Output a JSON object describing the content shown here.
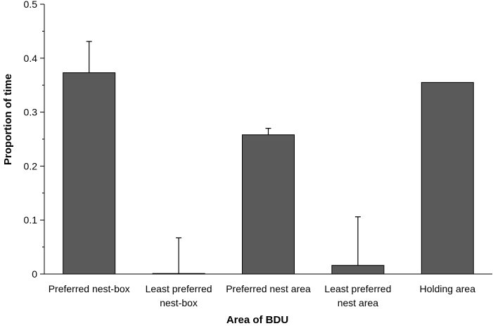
{
  "chart_data": {
    "type": "bar",
    "title": "",
    "xlabel": "Area of BDU",
    "ylabel": "Proportion of time",
    "categories": [
      [
        "Preferred nest-box"
      ],
      [
        "Least preferred",
        "nest-box"
      ],
      [
        "Preferred nest area"
      ],
      [
        "Least preferred",
        "nest area"
      ],
      [
        "Holding area"
      ]
    ],
    "values": [
      0.373,
      0.001,
      0.258,
      0.016,
      0.355
    ],
    "error_upper": [
      0.431,
      0.067,
      0.27,
      0.106,
      null
    ],
    "ylim": [
      0,
      0.5
    ],
    "yticks": [
      0,
      0.1,
      0.2,
      0.3,
      0.4,
      0.5
    ],
    "ytick_labels": [
      "0",
      "0.1",
      "0.2",
      "0.3",
      "0.4",
      "0.5"
    ],
    "grid": false,
    "bar_color": "#5a5a5a"
  }
}
